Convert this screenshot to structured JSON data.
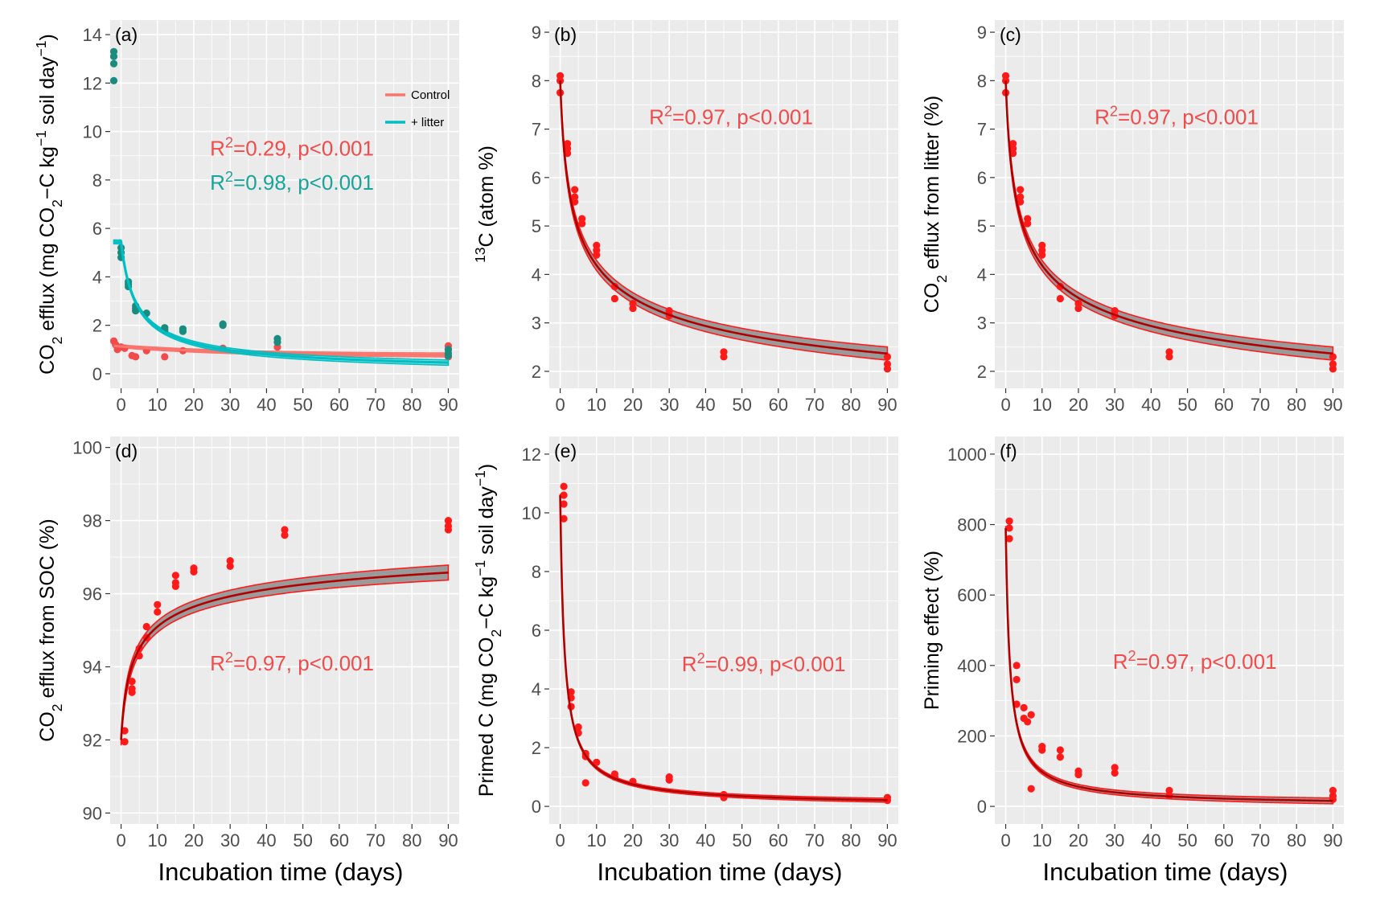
{
  "x_axis_title": "Incubation time (days)",
  "colors": {
    "panel_bg": "#ebebeb",
    "grid": "#ffffff",
    "control": "#f8766d",
    "litter": "#00bfc4",
    "litter_point": "#1a8c7f",
    "red": "#ff1a1a",
    "fit_dark": "#b00000",
    "ci_fill": "#8c8c8c"
  },
  "chart_data": [
    {
      "id": "a",
      "type": "scatter",
      "panel_label": "(a)",
      "ylabel": {
        "pre": "CO",
        "sub": "2",
        "mid": " efflux (mg CO",
        "sub2": "2",
        "mid2": "−C kg",
        "sup": "−1",
        "post": " soil day",
        "sup2": "−1",
        "end": ")"
      },
      "xlim": [
        -3,
        93
      ],
      "ylim": [
        -0.6,
        14.6
      ],
      "xticks": [
        0,
        10,
        20,
        30,
        40,
        50,
        60,
        70,
        80,
        90
      ],
      "yticks": [
        0,
        2,
        4,
        6,
        8,
        10,
        12,
        14
      ],
      "legend": [
        {
          "label": "Control",
          "color": "#f8766d"
        },
        {
          "label": "+ litter",
          "color": "#00bfc4"
        }
      ],
      "annotations": [
        {
          "pre": "R",
          "sup": "2",
          "post": "=0.29, p<0.001",
          "color": "#f24b4b",
          "x": 47,
          "y": 9.0
        },
        {
          "pre": "R",
          "sup": "2",
          "post": "=0.98, p<0.001",
          "color": "#1aa39a",
          "x": 47,
          "y": 7.6
        }
      ],
      "series": [
        {
          "name": "Control",
          "kind": "exp",
          "params": [
            1.15,
            0.4,
            0.03
          ],
          "color": "#f8766d",
          "band": 0.06,
          "points": [
            [
              -2,
              1.35
            ],
            [
              -1.5,
              1.2
            ],
            [
              -1,
              1.0
            ],
            [
              0,
              1.1
            ],
            [
              1,
              1.05
            ],
            [
              3,
              0.75
            ],
            [
              4,
              0.7
            ],
            [
              7,
              0.95
            ],
            [
              12,
              0.7
            ],
            [
              17,
              0.95
            ],
            [
              28,
              1.05
            ],
            [
              43,
              1.1
            ],
            [
              90,
              1.15
            ],
            [
              90,
              0.7
            ],
            [
              90,
              1.0
            ]
          ],
          "point_color": "#f24b4b"
        },
        {
          "name": "+ litter",
          "kind": "power",
          "params": [
            12.0,
            0.72,
            2.0
          ],
          "color": "#00bfc4",
          "band": 0.08,
          "points": [
            [
              -2,
              13.3
            ],
            [
              -2,
              13.1
            ],
            [
              -2,
              12.8
            ],
            [
              -2,
              12.1
            ],
            [
              0,
              5.2
            ],
            [
              0,
              5.0
            ],
            [
              0,
              4.8
            ],
            [
              2,
              3.8
            ],
            [
              2,
              3.7
            ],
            [
              2,
              3.6
            ],
            [
              4,
              2.8
            ],
            [
              4,
              2.7
            ],
            [
              4,
              2.6
            ],
            [
              7,
              2.5
            ],
            [
              12,
              1.9
            ],
            [
              12,
              1.8
            ],
            [
              17,
              1.85
            ],
            [
              17,
              1.75
            ],
            [
              28,
              2.05
            ],
            [
              28,
              2.0
            ],
            [
              43,
              1.45
            ],
            [
              43,
              1.3
            ],
            [
              90,
              1.0
            ],
            [
              90,
              0.85
            ],
            [
              90,
              0.75
            ]
          ],
          "point_color": "#1a8c7f"
        }
      ]
    },
    {
      "id": "b",
      "type": "scatter",
      "panel_label": "(b)",
      "ylabel": {
        "pre": "",
        "sup": "13",
        "post": "C (atom %)"
      },
      "xlim": [
        -3,
        93
      ],
      "ylim": [
        1.65,
        9.25
      ],
      "xticks": [
        0,
        10,
        20,
        30,
        40,
        50,
        60,
        70,
        80,
        90
      ],
      "yticks": [
        2,
        3,
        4,
        5,
        6,
        7,
        8,
        9
      ],
      "annotations": [
        {
          "pre": "R",
          "sup": "2",
          "post": "=0.97, p<0.001",
          "color": "#f24b4b",
          "x": 47,
          "y": 7.1
        }
      ],
      "series": [
        {
          "name": "fit",
          "kind": "power",
          "params": [
            8.0,
            0.27,
            0.0
          ],
          "color": "#ff1a1a",
          "band": 0.1,
          "points": [
            [
              0,
              8.1
            ],
            [
              0,
              8.0
            ],
            [
              0,
              7.75
            ],
            [
              2,
              6.7
            ],
            [
              2,
              6.6
            ],
            [
              2,
              6.5
            ],
            [
              4,
              5.75
            ],
            [
              4,
              5.6
            ],
            [
              4,
              5.5
            ],
            [
              6,
              5.15
            ],
            [
              6,
              5.05
            ],
            [
              10,
              4.6
            ],
            [
              10,
              4.5
            ],
            [
              10,
              4.4
            ],
            [
              15,
              3.75
            ],
            [
              15,
              3.5
            ],
            [
              20,
              3.4
            ],
            [
              20,
              3.3
            ],
            [
              30,
              3.25
            ],
            [
              30,
              3.15
            ],
            [
              45,
              2.4
            ],
            [
              45,
              2.3
            ],
            [
              90,
              2.3
            ],
            [
              90,
              2.15
            ],
            [
              90,
              2.05
            ]
          ]
        }
      ]
    },
    {
      "id": "c",
      "type": "scatter",
      "panel_label": "(c)",
      "ylabel": {
        "pre": "CO",
        "sub": "2",
        "post": " efflux from litter (%)"
      },
      "xlim": [
        -3,
        93
      ],
      "ylim": [
        1.65,
        9.25
      ],
      "xticks": [
        0,
        10,
        20,
        30,
        40,
        50,
        60,
        70,
        80,
        90
      ],
      "yticks": [
        2,
        3,
        4,
        5,
        6,
        7,
        8,
        9
      ],
      "annotations": [
        {
          "pre": "R",
          "sup": "2",
          "post": "=0.97, p<0.001",
          "color": "#f24b4b",
          "x": 47,
          "y": 7.1
        }
      ],
      "series": [
        {
          "name": "fit",
          "kind": "power",
          "params": [
            8.0,
            0.27,
            0.0
          ],
          "color": "#ff1a1a",
          "band": 0.1,
          "points": [
            [
              0,
              8.1
            ],
            [
              0,
              8.0
            ],
            [
              0,
              7.75
            ],
            [
              2,
              6.7
            ],
            [
              2,
              6.6
            ],
            [
              2,
              6.5
            ],
            [
              4,
              5.75
            ],
            [
              4,
              5.6
            ],
            [
              4,
              5.5
            ],
            [
              6,
              5.15
            ],
            [
              6,
              5.05
            ],
            [
              10,
              4.6
            ],
            [
              10,
              4.5
            ],
            [
              10,
              4.4
            ],
            [
              15,
              3.75
            ],
            [
              15,
              3.5
            ],
            [
              20,
              3.4
            ],
            [
              20,
              3.3
            ],
            [
              30,
              3.25
            ],
            [
              30,
              3.15
            ],
            [
              45,
              2.4
            ],
            [
              45,
              2.3
            ],
            [
              90,
              2.3
            ],
            [
              90,
              2.15
            ],
            [
              90,
              2.05
            ]
          ]
        }
      ]
    },
    {
      "id": "d",
      "type": "scatter",
      "panel_label": "(d)",
      "ylabel": {
        "pre": "CO",
        "sub": "2",
        "post": " efflux from SOC (%)"
      },
      "xlim": [
        -3,
        93
      ],
      "ylim": [
        89.7,
        100.3
      ],
      "xticks": [
        0,
        10,
        20,
        30,
        40,
        50,
        60,
        70,
        80,
        90
      ],
      "yticks": [
        90,
        92,
        94,
        96,
        98,
        100
      ],
      "annotations": [
        {
          "pre": "R",
          "sup": "2",
          "post": "=0.97, p<0.001",
          "color": "#f24b4b",
          "x": 47,
          "y": 93.9
        }
      ],
      "series": [
        {
          "name": "fit",
          "kind": "logish",
          "params": [
            92.0,
            6.5,
            0.27
          ],
          "color": "#ff1a1a",
          "band": 0.15,
          "points": [
            [
              1,
              92.25
            ],
            [
              1,
              91.95
            ],
            [
              3,
              93.6
            ],
            [
              3,
              93.4
            ],
            [
              3,
              93.3
            ],
            [
              5,
              94.5
            ],
            [
              5,
              94.3
            ],
            [
              7,
              95.1
            ],
            [
              7,
              94.8
            ],
            [
              10,
              95.7
            ],
            [
              10,
              95.5
            ],
            [
              15,
              96.5
            ],
            [
              15,
              96.3
            ],
            [
              15,
              96.2
            ],
            [
              20,
              96.7
            ],
            [
              20,
              96.6
            ],
            [
              30,
              96.9
            ],
            [
              30,
              96.75
            ],
            [
              45,
              97.75
            ],
            [
              45,
              97.6
            ],
            [
              90,
              98.0
            ],
            [
              90,
              97.85
            ],
            [
              90,
              97.75
            ]
          ]
        }
      ]
    },
    {
      "id": "e",
      "type": "scatter",
      "panel_label": "(e)",
      "ylabel": {
        "pre": "Primed C (mg CO",
        "sub": "2",
        "mid": "−C kg",
        "sup": "−1",
        "post": " soil day",
        "sup2": "−1",
        "end": ")"
      },
      "xlim": [
        -3,
        93
      ],
      "ylim": [
        -0.6,
        12.6
      ],
      "xticks": [
        0,
        10,
        20,
        30,
        40,
        50,
        60,
        70,
        80,
        90
      ],
      "yticks": [
        0,
        2,
        4,
        6,
        8,
        10,
        12
      ],
      "annotations": [
        {
          "pre": "R",
          "sup": "2",
          "post": "=0.99, p<0.001",
          "color": "#f24b4b",
          "x": 56,
          "y": 4.6
        }
      ],
      "series": [
        {
          "name": "fit",
          "kind": "power",
          "params": [
            10.6,
            0.87,
            0.0
          ],
          "color": "#ff1a1a",
          "band": 0.05,
          "points": [
            [
              1,
              10.9
            ],
            [
              1,
              10.6
            ],
            [
              1,
              10.3
            ],
            [
              1,
              9.8
            ],
            [
              3,
              3.9
            ],
            [
              3,
              3.7
            ],
            [
              3,
              3.4
            ],
            [
              5,
              2.7
            ],
            [
              5,
              2.5
            ],
            [
              7,
              1.8
            ],
            [
              7,
              1.7
            ],
            [
              7,
              0.8
            ],
            [
              10,
              1.5
            ],
            [
              15,
              1.1
            ],
            [
              15,
              1.0
            ],
            [
              20,
              0.85
            ],
            [
              30,
              1.0
            ],
            [
              30,
              0.9
            ],
            [
              45,
              0.4
            ],
            [
              45,
              0.3
            ],
            [
              90,
              0.3
            ],
            [
              90,
              0.2
            ]
          ]
        }
      ]
    },
    {
      "id": "f",
      "type": "scatter",
      "panel_label": "(f)",
      "ylabel": {
        "pre": "Priming effect (%)"
      },
      "xlim": [
        -3,
        93
      ],
      "ylim": [
        -50,
        1050
      ],
      "xticks": [
        0,
        10,
        20,
        30,
        40,
        50,
        60,
        70,
        80,
        90
      ],
      "yticks": [
        0,
        200,
        400,
        600,
        800,
        1000
      ],
      "annotations": [
        {
          "pre": "R",
          "sup": "2",
          "post": "=0.97, p<0.001",
          "color": "#f24b4b",
          "x": 52,
          "y": 390
        }
      ],
      "series": [
        {
          "name": "fit",
          "kind": "power",
          "params": [
            790,
            0.87,
            0.0
          ],
          "color": "#ff1a1a",
          "band": 6,
          "points": [
            [
              1,
              810
            ],
            [
              1,
              790
            ],
            [
              1,
              760
            ],
            [
              3,
              400
            ],
            [
              3,
              360
            ],
            [
              3,
              290
            ],
            [
              5,
              280
            ],
            [
              5,
              250
            ],
            [
              6,
              240
            ],
            [
              7,
              260
            ],
            [
              7,
              50
            ],
            [
              10,
              170
            ],
            [
              10,
              160
            ],
            [
              15,
              160
            ],
            [
              15,
              140
            ],
            [
              20,
              100
            ],
            [
              20,
              90
            ],
            [
              30,
              110
            ],
            [
              30,
              95
            ],
            [
              45,
              45
            ],
            [
              45,
              30
            ],
            [
              90,
              45
            ],
            [
              90,
              30
            ],
            [
              90,
              20
            ]
          ]
        }
      ]
    }
  ]
}
